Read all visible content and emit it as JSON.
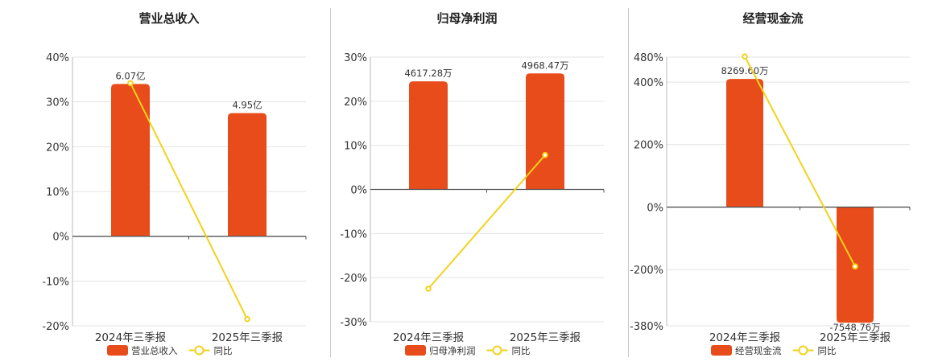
{
  "colors": {
    "bar": "#e84c1a",
    "line": "#f2d21b",
    "grid": "#e3e3e3",
    "axis": "#555555",
    "separator": "#c8c8c8"
  },
  "chart_data": [
    {
      "type": "bar",
      "title": "营业总收入",
      "categories": [
        "2024年三季报",
        "2025年三季报"
      ],
      "series": [
        {
          "name": "营业总收入",
          "type": "bar",
          "values": [
            34,
            27.5
          ],
          "labels": [
            "6.07亿",
            "4.95亿"
          ]
        },
        {
          "name": "同比",
          "type": "line",
          "values": [
            34.2,
            -18.5
          ]
        }
      ],
      "yticks": [
        "40%",
        "30%",
        "20%",
        "10%",
        "0%",
        "-10%",
        "-20%"
      ],
      "ylim": [
        -20,
        40
      ],
      "ytick_values": [
        40,
        30,
        20,
        10,
        0,
        -10,
        -20
      ],
      "legend": [
        "营业总收入",
        "同比"
      ]
    },
    {
      "type": "bar",
      "title": "归母净利润",
      "categories": [
        "2024年三季报",
        "2025年三季报"
      ],
      "series": [
        {
          "name": "归母净利润",
          "type": "bar",
          "values": [
            24.5,
            26.3
          ],
          "labels": [
            "4617.28万",
            "4968.47万"
          ]
        },
        {
          "name": "同比",
          "type": "line",
          "values": [
            -22.5,
            7.8
          ]
        }
      ],
      "yticks": [
        "30%",
        "20%",
        "10%",
        "0%",
        "-10%",
        "-20%",
        "-30%"
      ],
      "ylim": [
        -30,
        30
      ],
      "ytick_values": [
        30,
        20,
        10,
        0,
        -10,
        -20,
        -30
      ],
      "legend": [
        "归母净利润",
        "同比"
      ]
    },
    {
      "type": "bar",
      "title": "经营现金流",
      "categories": [
        "2024年三季报",
        "2025年三季报"
      ],
      "series": [
        {
          "name": "经营现金流",
          "type": "bar",
          "values": [
            410,
            -370
          ],
          "labels": [
            "8269.60万",
            "-7548.76万"
          ]
        },
        {
          "name": "同比",
          "type": "line",
          "values": [
            482,
            -190
          ]
        }
      ],
      "yticks": [
        "480%",
        "400%",
        "200%",
        "0%",
        "-200%",
        "-380%"
      ],
      "ylim": [
        -380,
        480
      ],
      "ytick_values": [
        480,
        400,
        200,
        0,
        -200,
        -380
      ],
      "legend": [
        "经营现金流",
        "同比"
      ]
    }
  ]
}
